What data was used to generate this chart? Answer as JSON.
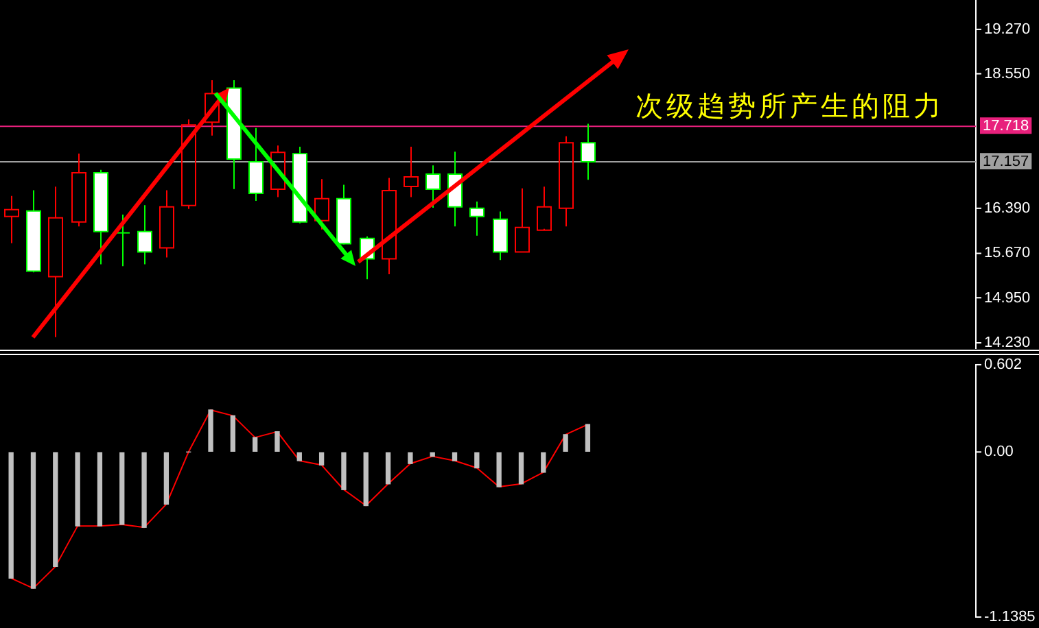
{
  "chart_data": [
    {
      "type": "candlestick",
      "categories": [
        null,
        null,
        null,
        null,
        null,
        null,
        null,
        null,
        null,
        null,
        null,
        null,
        null,
        null,
        null,
        null,
        null,
        null,
        null,
        null,
        null,
        null,
        null,
        null,
        null,
        null,
        null,
        null,
        null,
        null,
        null,
        null,
        null,
        null,
        null,
        null,
        null,
        null,
        null,
        null,
        null,
        null,
        null,
        null
      ],
      "ohlc": [
        [
          16.28,
          16.59,
          15.83,
          16.39
        ],
        [
          16.36,
          16.68,
          15.36,
          15.39
        ],
        [
          15.3,
          16.74,
          14.32,
          16.24
        ],
        [
          16.19,
          17.27,
          16.1,
          16.98
        ],
        [
          16.98,
          17.01,
          15.49,
          16.02
        ],
        [
          16.01,
          16.29,
          15.46,
          16.01
        ],
        [
          16.02,
          16.44,
          15.49,
          15.69
        ],
        [
          15.76,
          16.68,
          15.6,
          16.43
        ],
        [
          16.45,
          17.82,
          16.38,
          17.75
        ],
        [
          17.79,
          18.45,
          17.56,
          18.25
        ],
        [
          18.33,
          18.45,
          16.7,
          17.2
        ],
        [
          17.14,
          17.68,
          16.51,
          16.65
        ],
        [
          16.72,
          17.4,
          16.57,
          17.31
        ],
        [
          17.29,
          17.38,
          16.15,
          16.19
        ],
        [
          16.21,
          16.86,
          16.05,
          16.56
        ],
        [
          16.56,
          16.77,
          15.81,
          15.83
        ],
        [
          15.91,
          15.94,
          15.25,
          15.6
        ],
        [
          15.58,
          16.88,
          15.33,
          16.68
        ],
        [
          16.76,
          17.38,
          16.57,
          16.9
        ],
        [
          16.96,
          17.08,
          16.4,
          16.72
        ],
        [
          16.96,
          17.3,
          16.1,
          16.43
        ],
        [
          16.41,
          16.5,
          15.95,
          16.26
        ],
        [
          16.23,
          16.34,
          15.56,
          15.69
        ],
        [
          15.69,
          16.71,
          15.69,
          16.1
        ],
        [
          16.06,
          16.74,
          16.06,
          16.43
        ],
        [
          16.41,
          17.55,
          16.1,
          17.46
        ],
        [
          17.46,
          17.75,
          16.85,
          17.157
        ],
        null,
        null,
        null,
        null,
        null,
        null,
        null,
        null,
        null,
        null,
        null,
        null,
        null,
        null,
        null,
        null,
        null
      ],
      "colors": [
        "#ff0000",
        "#ffffff",
        "#ff0000",
        "#ff0000",
        "#ffffff",
        "#00ff00",
        "#ffffff",
        "#ff0000",
        "#ff0000",
        "#ff0000",
        "#ffffff",
        "#ffffff",
        "#ff0000",
        "#ffffff",
        "#ff0000",
        "#ffffff",
        "#ffffff",
        "#ff0000",
        "#ff0000",
        "#ffffff",
        "#ffffff",
        "#ffffff",
        "#ffffff",
        "#ff0000",
        "#ff0000",
        "#ff0000",
        "#ffffff",
        null,
        null,
        null,
        null,
        null,
        null,
        null,
        null,
        null,
        null,
        null,
        null,
        null,
        null,
        null,
        null,
        null
      ],
      "ylim": [
        14.14,
        19.74
      ],
      "yticks": [
        {
          "value": 14.23,
          "label": "14.230"
        },
        {
          "value": 14.95,
          "label": "14.950"
        },
        {
          "value": 15.67,
          "label": "15.670"
        },
        {
          "value": 16.39,
          "label": "16.390"
        },
        {
          "value": 18.55,
          "label": "18.550"
        },
        {
          "value": 19.27,
          "label": "19.270"
        }
      ],
      "tick_labels": "y",
      "ref_lines": [
        {
          "axis": "y",
          "value": 17.718,
          "label": "17.718",
          "color": "#e8207c"
        },
        {
          "axis": "y",
          "value": 17.157,
          "label": "17.157",
          "color": "#a0a0a0"
        }
      ],
      "annotations": [
        "次级趋势所产生的阻力"
      ]
    },
    {
      "type": "bar",
      "categories": [
        null,
        null,
        null,
        null,
        null,
        null,
        null,
        null,
        null,
        null,
        null,
        null,
        null,
        null,
        null,
        null,
        null,
        null,
        null,
        null,
        null,
        null,
        null,
        null,
        null,
        null,
        null,
        null,
        null,
        null,
        null,
        null,
        null,
        null,
        null,
        null,
        null,
        null,
        null,
        null,
        null,
        null,
        null,
        null
      ],
      "series": [
        {
          "type": "bar",
          "color": "#c0c0c0",
          "values": [
            -0.87,
            -0.94,
            -0.79,
            -0.51,
            -0.51,
            -0.5,
            -0.52,
            -0.36,
            0,
            0.29,
            0.25,
            0.1,
            0.14,
            -0.06,
            -0.09,
            -0.26,
            -0.37,
            -0.22,
            -0.08,
            -0.03,
            -0.06,
            -0.11,
            -0.24,
            -0.22,
            -0.14,
            0.12,
            0.19,
            null,
            null,
            null,
            null,
            null,
            null,
            null,
            null,
            null,
            null,
            null,
            null,
            null,
            null,
            null,
            null,
            null
          ]
        },
        {
          "type": "line",
          "color": "#ff0000",
          "values": [
            -0.87,
            -0.94,
            -0.79,
            -0.51,
            -0.51,
            -0.5,
            -0.52,
            -0.36,
            0,
            0.29,
            0.25,
            0.1,
            0.14,
            -0.06,
            -0.09,
            -0.26,
            -0.37,
            -0.22,
            -0.08,
            -0.03,
            -0.06,
            -0.11,
            -0.24,
            -0.22,
            -0.14,
            0.12,
            0.19,
            null,
            null,
            null,
            null,
            null,
            null,
            null,
            null,
            null,
            null,
            null,
            null,
            null,
            null,
            null,
            null,
            null
          ]
        }
      ],
      "ylim": [
        -1.1385,
        0.602
      ],
      "yticks": [
        0.602,
        {
          "value": 0,
          "label": "0.00"
        },
        -1.1385
      ],
      "tick_labels": "y"
    }
  ]
}
